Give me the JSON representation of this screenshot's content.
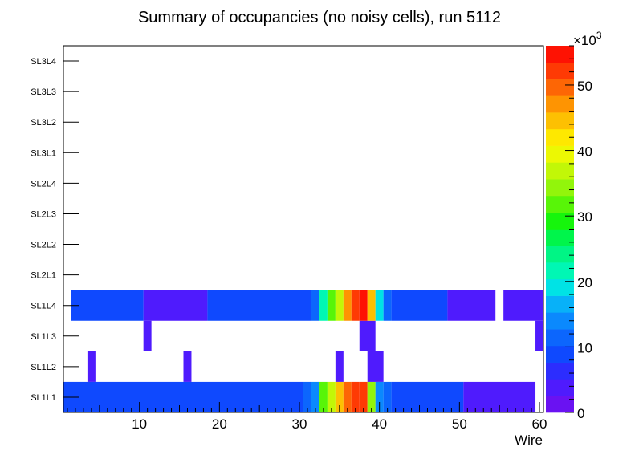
{
  "chart_data": {
    "type": "heatmap",
    "title": "Summary of occupancies (no noisy cells), run 5112",
    "xlabel": "Wire",
    "ylabel": "",
    "xlim": [
      0.5,
      60.5
    ],
    "x_ticks": [
      10,
      20,
      30,
      40,
      50,
      60
    ],
    "x_tick_labels": [
      "10",
      "20",
      "30",
      "40",
      "50",
      "60"
    ],
    "y_categories": [
      "SL1L1",
      "SL1L2",
      "SL1L3",
      "SL1L4",
      "SL2L1",
      "SL2L2",
      "SL2L3",
      "SL2L4",
      "SL3L1",
      "SL3L2",
      "SL3L3",
      "SL3L4"
    ],
    "z_range": [
      0,
      56000
    ],
    "z_multiplier_label": "×10",
    "z_multiplier_exponent": "3",
    "z_ticks": [
      0,
      10,
      20,
      30,
      40,
      50
    ],
    "z_tick_labels": [
      "0",
      "10",
      "20",
      "30",
      "40",
      "50"
    ],
    "cells": [
      {
        "layer": "SL1L1",
        "x_start": 1,
        "x_end": 31,
        "value": 8000
      },
      {
        "layer": "SL1L1",
        "x_start": 31,
        "x_end": 32,
        "value": 11000
      },
      {
        "layer": "SL1L1",
        "x_start": 32,
        "x_end": 33,
        "value": 13000
      },
      {
        "layer": "SL1L1",
        "x_start": 33,
        "x_end": 34,
        "value": 31000
      },
      {
        "layer": "SL1L1",
        "x_start": 34,
        "x_end": 35,
        "value": 38000
      },
      {
        "layer": "SL1L1",
        "x_start": 35,
        "x_end": 36,
        "value": 45000
      },
      {
        "layer": "SL1L1",
        "x_start": 36,
        "x_end": 37,
        "value": 49000
      },
      {
        "layer": "SL1L1",
        "x_start": 37,
        "x_end": 38,
        "value": 53000
      },
      {
        "layer": "SL1L1",
        "x_start": 38,
        "x_end": 39,
        "value": 51000
      },
      {
        "layer": "SL1L1",
        "x_start": 39,
        "x_end": 40,
        "value": 35000
      },
      {
        "layer": "SL1L1",
        "x_start": 40,
        "x_end": 41,
        "value": 13000
      },
      {
        "layer": "SL1L1",
        "x_start": 41,
        "x_end": 42,
        "value": 11000
      },
      {
        "layer": "SL1L1",
        "x_start": 42,
        "x_end": 51,
        "value": 8000
      },
      {
        "layer": "SL1L1",
        "x_start": 51,
        "x_end": 60,
        "value": 5000
      },
      {
        "layer": "SL1L2",
        "x_start": 4,
        "x_end": 5,
        "value": 4000
      },
      {
        "layer": "SL1L2",
        "x_start": 16,
        "x_end": 17,
        "value": 4000
      },
      {
        "layer": "SL1L2",
        "x_start": 35,
        "x_end": 36,
        "value": 4000
      },
      {
        "layer": "SL1L2",
        "x_start": 39,
        "x_end": 41,
        "value": 4000
      },
      {
        "layer": "SL1L3",
        "x_start": 11,
        "x_end": 12,
        "value": 4000
      },
      {
        "layer": "SL1L3",
        "x_start": 38,
        "x_end": 40,
        "value": 4000
      },
      {
        "layer": "SL1L3",
        "x_start": 60,
        "x_end": 61,
        "value": 4000
      },
      {
        "layer": "SL1L4",
        "x_start": 2,
        "x_end": 11,
        "value": 8000
      },
      {
        "layer": "SL1L4",
        "x_start": 11,
        "x_end": 19,
        "value": 5000
      },
      {
        "layer": "SL1L4",
        "x_start": 19,
        "x_end": 32,
        "value": 8000
      },
      {
        "layer": "SL1L4",
        "x_start": 32,
        "x_end": 33,
        "value": 11000
      },
      {
        "layer": "SL1L4",
        "x_start": 33,
        "x_end": 34,
        "value": 21000
      },
      {
        "layer": "SL1L4",
        "x_start": 34,
        "x_end": 35,
        "value": 31000
      },
      {
        "layer": "SL1L4",
        "x_start": 35,
        "x_end": 36,
        "value": 38000
      },
      {
        "layer": "SL1L4",
        "x_start": 36,
        "x_end": 37,
        "value": 47000
      },
      {
        "layer": "SL1L4",
        "x_start": 37,
        "x_end": 38,
        "value": 51000
      },
      {
        "layer": "SL1L4",
        "x_start": 38,
        "x_end": 39,
        "value": 54000
      },
      {
        "layer": "SL1L4",
        "x_start": 39,
        "x_end": 40,
        "value": 45000
      },
      {
        "layer": "SL1L4",
        "x_start": 40,
        "x_end": 41,
        "value": 20000
      },
      {
        "layer": "SL1L4",
        "x_start": 41,
        "x_end": 42,
        "value": 11000
      },
      {
        "layer": "SL1L4",
        "x_start": 42,
        "x_end": 49,
        "value": 8000
      },
      {
        "layer": "SL1L4",
        "x_start": 49,
        "x_end": 55,
        "value": 5000
      },
      {
        "layer": "SL1L4",
        "x_start": 56,
        "x_end": 61,
        "value": 5000
      }
    ]
  }
}
